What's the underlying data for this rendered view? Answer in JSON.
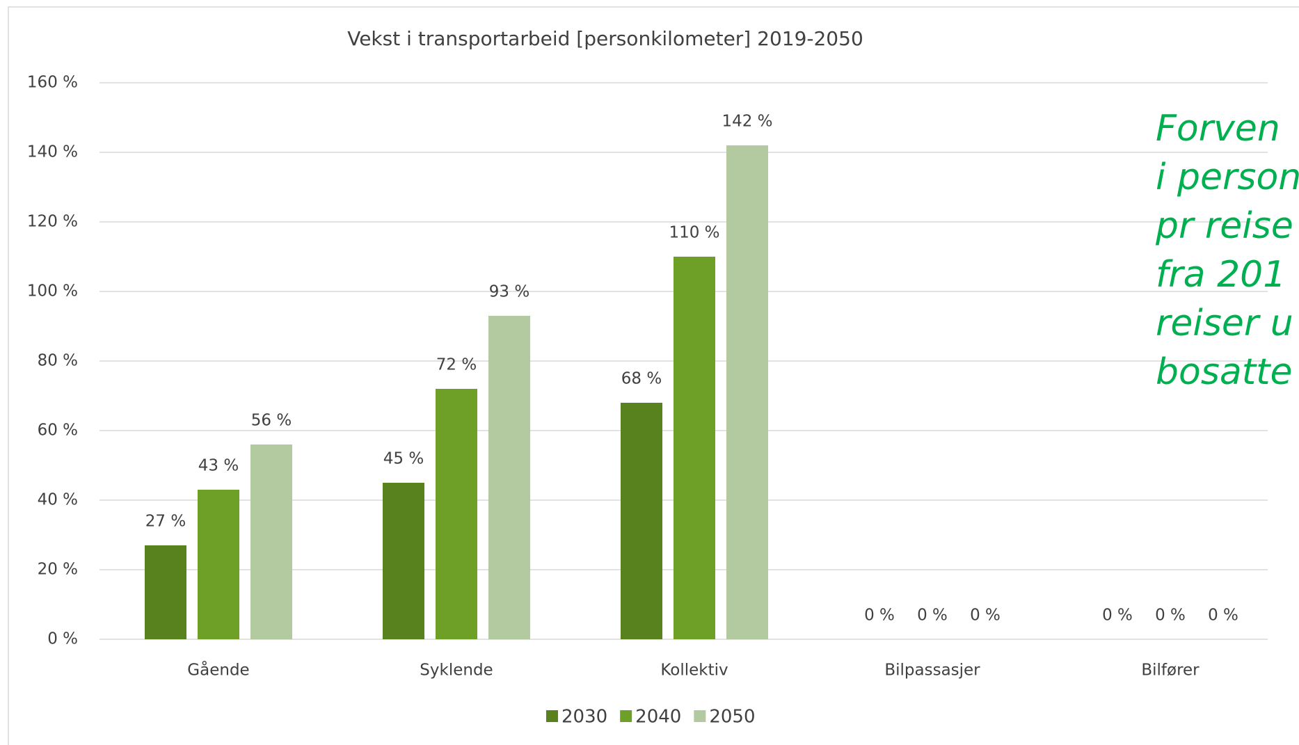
{
  "chart_data": {
    "type": "bar",
    "title": "Vekst i transportarbeid [personkilometer] 2019-2050",
    "categories": [
      "Gående",
      "Syklende",
      "Kollektiv",
      "Bilpassasjer",
      "Bilfører"
    ],
    "series": [
      {
        "name": "2030",
        "color": "#58821e",
        "values": [
          27,
          45,
          68,
          0,
          0
        ],
        "value_labels": [
          "27 %",
          "45 %",
          "68 %",
          "0 %",
          "0 %"
        ]
      },
      {
        "name": "2040",
        "color": "#6ea027",
        "values": [
          43,
          72,
          110,
          0,
          0
        ],
        "value_labels": [
          "43 %",
          "72 %",
          "110 %",
          "0 %",
          "0 %"
        ]
      },
      {
        "name": "2050",
        "color": "#b3c9a0",
        "values": [
          56,
          93,
          142,
          0,
          0
        ],
        "value_labels": [
          "56 %",
          "93 %",
          "142 %",
          "0 %",
          "0 %"
        ]
      }
    ],
    "ylim": [
      0,
      160
    ],
    "yticks": [
      {
        "value": 0,
        "label": "0 %"
      },
      {
        "value": 20,
        "label": "20 %"
      },
      {
        "value": 40,
        "label": "40 %"
      },
      {
        "value": 60,
        "label": "60 %"
      },
      {
        "value": 80,
        "label": "80 %"
      },
      {
        "value": 100,
        "label": "100 %"
      },
      {
        "value": 120,
        "label": "120 %"
      },
      {
        "value": 140,
        "label": "140 %"
      },
      {
        "value": 160,
        "label": "160 %"
      }
    ],
    "grid": true,
    "legend": "bottom",
    "annotation": {
      "color": "#00b050",
      "lines": [
        "Forven",
        "i person",
        "pr reise",
        "fra 201",
        "reiser u",
        "bosatte"
      ]
    }
  }
}
